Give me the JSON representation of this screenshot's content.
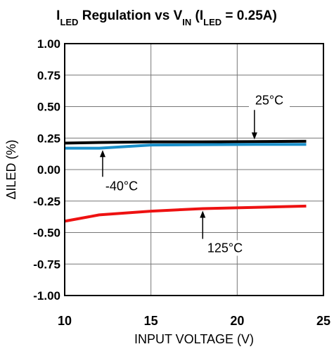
{
  "chart_data": {
    "type": "line",
    "title": {
      "parts": [
        {
          "text": "I",
          "sub": false
        },
        {
          "text": "LED",
          "sub": true
        },
        {
          "text": " Regulation vs V",
          "sub": false
        },
        {
          "text": "IN",
          "sub": true
        },
        {
          "text": " (I",
          "sub": false
        },
        {
          "text": "LED",
          "sub": true
        },
        {
          "text": " = 0.25A)",
          "sub": false
        }
      ]
    },
    "xlabel": "INPUT VOLTAGE (V)",
    "ylabel": "ΔILED (%)",
    "xlim": [
      10,
      25
    ],
    "ylim": [
      -1.0,
      1.0
    ],
    "x_ticks": [
      "10",
      "15",
      "20",
      "25"
    ],
    "y_ticks": [
      "1.00",
      "0.75",
      "0.50",
      "0.25",
      "0.00",
      "-0.25",
      "-0.50",
      "-0.75",
      "-1.00"
    ],
    "grid": true,
    "series": [
      {
        "name": "25°C",
        "color": "#000000",
        "x": [
          10,
          12,
          15,
          18,
          21,
          24
        ],
        "y": [
          0.21,
          0.215,
          0.22,
          0.22,
          0.222,
          0.225
        ]
      },
      {
        "name": "-40°C",
        "color": "#1a8fc9",
        "x": [
          10,
          12,
          15,
          18,
          21,
          24
        ],
        "y": [
          0.17,
          0.17,
          0.195,
          0.198,
          0.2,
          0.2
        ]
      },
      {
        "name": "125°C",
        "color": "#ee1111",
        "x": [
          10,
          12,
          15,
          18,
          21,
          24
        ],
        "y": [
          -0.41,
          -0.36,
          -0.33,
          -0.31,
          -0.3,
          -0.29
        ]
      }
    ],
    "annotations": [
      {
        "text": "25°C",
        "series": "25°C"
      },
      {
        "text": "-40°C",
        "series": "-40°C"
      },
      {
        "text": "125°C",
        "series": "125°C"
      }
    ]
  }
}
